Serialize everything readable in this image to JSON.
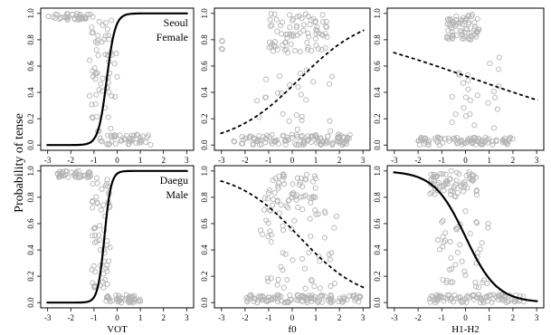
{
  "figure": {
    "ylabel": "Probability of tense",
    "colors": {
      "points": "#b4b4b4",
      "curve": "#000000",
      "frame": "#000000"
    }
  },
  "chart_data": [
    {
      "type": "scatter",
      "row": "Seoul Female",
      "panel_label": [
        "Seoul",
        "Female"
      ],
      "xlabel": "",
      "xlim": [
        -3.3,
        3.3
      ],
      "ylim": [
        -0.04,
        1.04
      ],
      "xticks": [
        -3,
        -2,
        -1,
        0,
        1,
        2,
        3
      ],
      "yticks": [
        0.0,
        0.2,
        0.4,
        0.6,
        0.8,
        1.0
      ],
      "curve": {
        "style": "solid",
        "shape": "logistic",
        "midpoint": -0.45,
        "slope": 5.5
      },
      "point_clusters": [
        {
          "x_range": [
            -3.0,
            -1.0
          ],
          "y_range": [
            0.95,
            1.0
          ],
          "count": 40
        },
        {
          "x_range": [
            -1.2,
            0.0
          ],
          "y_range": [
            0.1,
            0.95
          ],
          "count": 60
        },
        {
          "x_range": [
            -0.8,
            1.5
          ],
          "y_range": [
            0.0,
            0.08
          ],
          "count": 45
        }
      ]
    },
    {
      "type": "scatter",
      "row": "Seoul Female",
      "panel_label": [],
      "xlabel": "",
      "xlim": [
        -3.3,
        3.3
      ],
      "ylim": [
        -0.04,
        1.04
      ],
      "xticks": [
        -3,
        -2,
        -1,
        0,
        1,
        2,
        3
      ],
      "yticks": [
        0.0,
        0.2,
        0.4,
        0.6,
        0.8,
        1.0
      ],
      "curve": {
        "style": "dashed",
        "shape": "logistic",
        "midpoint": 0.3,
        "slope": 0.7
      },
      "point_clusters": [
        {
          "x_range": [
            -1.0,
            1.5
          ],
          "y_range": [
            0.7,
            1.0
          ],
          "count": 80
        },
        {
          "x_range": [
            -2.5,
            2.5
          ],
          "y_range": [
            0.0,
            0.08
          ],
          "count": 120
        },
        {
          "x_range": [
            -1.5,
            2.0
          ],
          "y_range": [
            0.1,
            0.6
          ],
          "count": 25
        },
        {
          "x_range": [
            -3.0,
            -2.5
          ],
          "y_range": [
            0.7,
            0.8
          ],
          "count": 4
        }
      ]
    },
    {
      "type": "scatter",
      "row": "Seoul Female",
      "panel_label": [],
      "xlabel": "",
      "xlim": [
        -3.3,
        3.3
      ],
      "ylim": [
        -0.04,
        1.04
      ],
      "xticks": [
        -3,
        -2,
        -1,
        0,
        1,
        2,
        3
      ],
      "yticks": [
        0.0,
        0.2,
        0.4,
        0.6,
        0.8,
        1.0
      ],
      "curve": {
        "style": "dashed",
        "shape": "logistic",
        "midpoint": 0.4,
        "slope": -0.25
      },
      "point_clusters": [
        {
          "x_range": [
            -0.8,
            0.6
          ],
          "y_range": [
            0.8,
            1.0
          ],
          "count": 70
        },
        {
          "x_range": [
            -2.0,
            2.0
          ],
          "y_range": [
            0.0,
            0.06
          ],
          "count": 90
        },
        {
          "x_range": [
            -1.0,
            1.5
          ],
          "y_range": [
            0.1,
            0.7
          ],
          "count": 25
        }
      ]
    },
    {
      "type": "scatter",
      "row": "Daegu Male",
      "panel_label": [
        "Daegu",
        "Male"
      ],
      "xlabel": "VOT",
      "xlim": [
        -3.3,
        3.3
      ],
      "ylim": [
        -0.04,
        1.04
      ],
      "xticks": [
        -3,
        -2,
        -1,
        0,
        1,
        2,
        3
      ],
      "yticks": [
        0.0,
        0.2,
        0.4,
        0.6,
        0.8,
        1.0
      ],
      "curve": {
        "style": "solid",
        "shape": "logistic",
        "midpoint": -0.55,
        "slope": 7
      },
      "point_clusters": [
        {
          "x_range": [
            -2.6,
            -1.1
          ],
          "y_range": [
            0.95,
            1.0
          ],
          "count": 40
        },
        {
          "x_range": [
            -1.1,
            -0.3
          ],
          "y_range": [
            0.1,
            0.95
          ],
          "count": 60
        },
        {
          "x_range": [
            -0.6,
            1.0
          ],
          "y_range": [
            0.0,
            0.06
          ],
          "count": 45
        }
      ]
    },
    {
      "type": "scatter",
      "row": "Daegu Male",
      "panel_label": [],
      "xlabel": "f0",
      "xlim": [
        -3.3,
        3.3
      ],
      "ylim": [
        -0.04,
        1.04
      ],
      "xticks": [
        -3,
        -2,
        -1,
        0,
        1,
        2,
        3
      ],
      "yticks": [
        0.0,
        0.2,
        0.4,
        0.6,
        0.8,
        1.0
      ],
      "curve": {
        "style": "dashed",
        "shape": "logistic",
        "midpoint": 0.3,
        "slope": -0.75
      },
      "point_clusters": [
        {
          "x_range": [
            -1.2,
            1.0
          ],
          "y_range": [
            0.7,
            1.0
          ],
          "count": 60
        },
        {
          "x_range": [
            -1.5,
            2.0
          ],
          "y_range": [
            0.1,
            0.7
          ],
          "count": 50
        },
        {
          "x_range": [
            -2.0,
            3.0
          ],
          "y_range": [
            0.0,
            0.06
          ],
          "count": 110
        }
      ]
    },
    {
      "type": "scatter",
      "row": "Daegu Male",
      "panel_label": [],
      "xlabel": "H1-H2",
      "xlim": [
        -3.3,
        3.3
      ],
      "ylim": [
        -0.04,
        1.04
      ],
      "xticks": [
        -3,
        -2,
        -1,
        0,
        1,
        2,
        3
      ],
      "yticks": [
        0.0,
        0.2,
        0.4,
        0.6,
        0.8,
        1.0
      ],
      "curve": {
        "style": "solid",
        "shape": "logistic",
        "midpoint": 0.0,
        "slope": -1.5
      },
      "point_clusters": [
        {
          "x_range": [
            -1.5,
            0.5
          ],
          "y_range": [
            0.8,
            1.0
          ],
          "count": 70
        },
        {
          "x_range": [
            -1.2,
            1.0
          ],
          "y_range": [
            0.1,
            0.7
          ],
          "count": 45
        },
        {
          "x_range": [
            -1.5,
            2.5
          ],
          "y_range": [
            0.0,
            0.06
          ],
          "count": 90
        }
      ]
    }
  ]
}
